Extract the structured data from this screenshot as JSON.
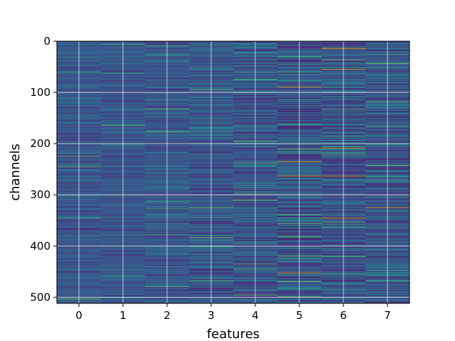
{
  "chart_data": {
    "type": "heatmap",
    "title": "",
    "xlabel": "features",
    "ylabel": "channels",
    "x_ticks": [
      "0",
      "1",
      "2",
      "3",
      "4",
      "5",
      "6",
      "7"
    ],
    "y_ticks": [
      "0",
      "100",
      "200",
      "300",
      "400",
      "500"
    ],
    "n_features": 8,
    "n_channels": 512,
    "ylim": [
      512,
      0
    ],
    "grid": true,
    "colormap": "viridis",
    "colors": {
      "low": "#440154",
      "mid": "#3b528b",
      "teal": "#21918c",
      "green": "#5ec962",
      "high": "#fde725",
      "grid": "#e6e6e6",
      "frame": "#000000"
    },
    "column_contrast": [
      0.18,
      0.22,
      0.28,
      0.45,
      0.6,
      0.8,
      0.75,
      0.7
    ],
    "notable_bright_channels": {
      "5": [
        89,
        235,
        263,
        452
      ],
      "6": [
        14,
        54,
        208,
        263,
        345
      ],
      "7": [
        325
      ]
    }
  }
}
